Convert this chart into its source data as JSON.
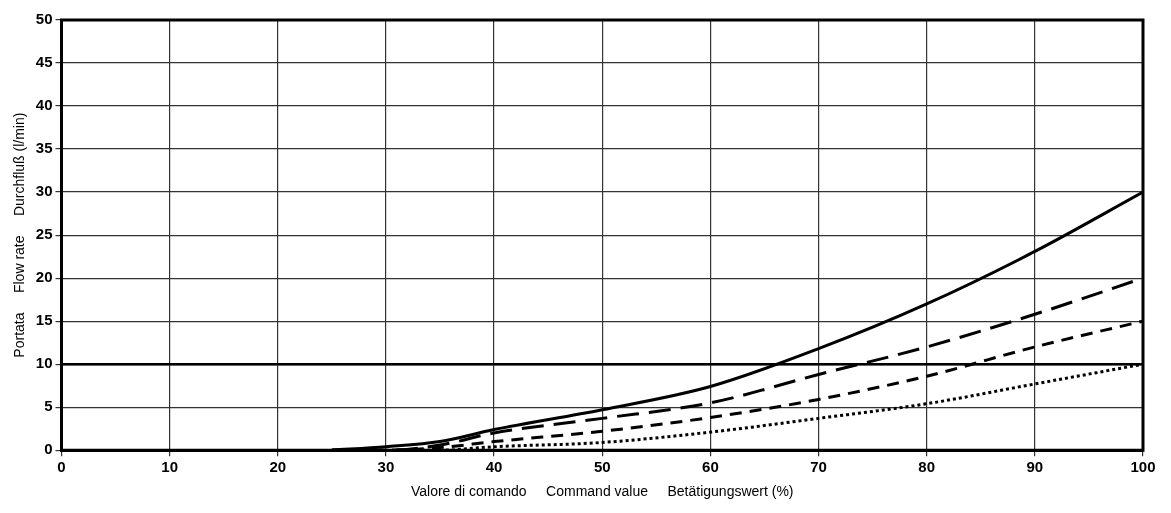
{
  "chart_data": {
    "type": "line",
    "xlabel": "Valore di comando     Command value     Betätigungswert (%)",
    "ylabel": "Portata     Flow rate     Durchfluß (l/min)",
    "x": [
      25,
      30,
      35,
      40,
      50,
      60,
      70,
      80,
      90,
      100
    ],
    "series": [
      {
        "color": "#000000",
        "line_style": "solid",
        "values": [
          0,
          0.4,
          1.0,
          2.4,
          4.7,
          7.4,
          11.8,
          17.0,
          23.1,
          30
        ]
      },
      {
        "color": "#000000",
        "line_style": "dashed",
        "values": [
          0,
          0,
          0.6,
          2.0,
          3.7,
          5.5,
          8.8,
          12.0,
          15.8,
          20
        ]
      },
      {
        "color": "#000000",
        "line_style": "dashed",
        "values": [
          0,
          0,
          0.3,
          1.0,
          2.2,
          3.8,
          5.9,
          8.6,
          12.0,
          15
        ]
      },
      {
        "color": "#000000",
        "line_style": "dotted",
        "values": [
          0,
          0,
          0,
          0.4,
          0.9,
          2.1,
          3.7,
          5.4,
          7.7,
          10
        ]
      }
    ],
    "xlim": [
      0,
      100
    ],
    "xticks": [
      0,
      10,
      20,
      30,
      40,
      50,
      60,
      70,
      80,
      90,
      100
    ],
    "ylim": [
      0,
      50
    ],
    "yticks": [
      0,
      5,
      10,
      15,
      20,
      25,
      30,
      35,
      40,
      45,
      50
    ],
    "grid": true,
    "legend": false,
    "marker": "none",
    "ref_lines": [
      {
        "axis": "y",
        "value": 10,
        "color": "#000000"
      }
    ]
  }
}
